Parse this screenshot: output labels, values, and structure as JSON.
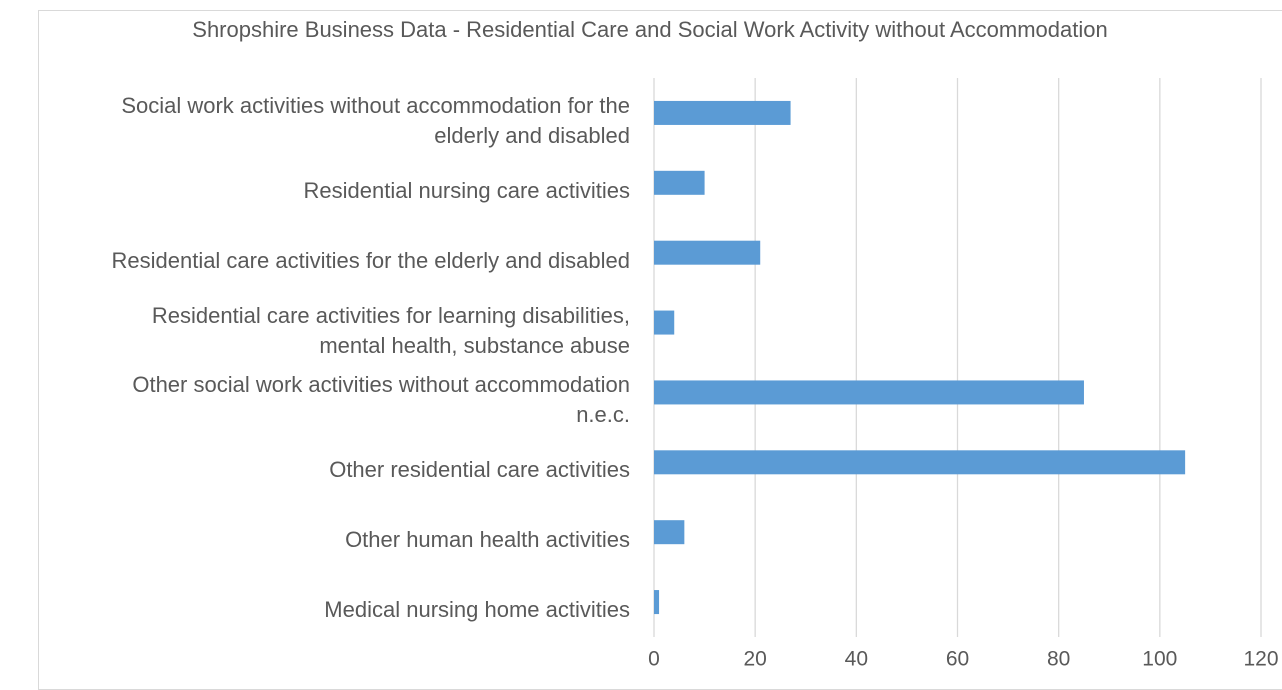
{
  "chart_data": {
    "type": "bar",
    "orientation": "horizontal",
    "title": "Shropshire Business Data - Residential Care and Social Work Activity without Accommodation",
    "categories": [
      "Social work activities without accommodation for the elderly and disabled",
      "Residential nursing care activities",
      "Residential care activities for the elderly and disabled",
      "Residential care activities for learning disabilities, mental health, substance abuse",
      "Other social work activities without accommodation n.e.c.",
      "Other residential care activities",
      "Other human health activities",
      "Medical nursing home activities"
    ],
    "values": [
      27,
      10,
      21,
      4,
      85,
      105,
      6,
      1
    ],
    "color": "#5b9bd5",
    "xlim": [
      0,
      120
    ],
    "xticks": [
      0,
      20,
      40,
      60,
      80,
      100,
      120
    ],
    "grid": true
  }
}
